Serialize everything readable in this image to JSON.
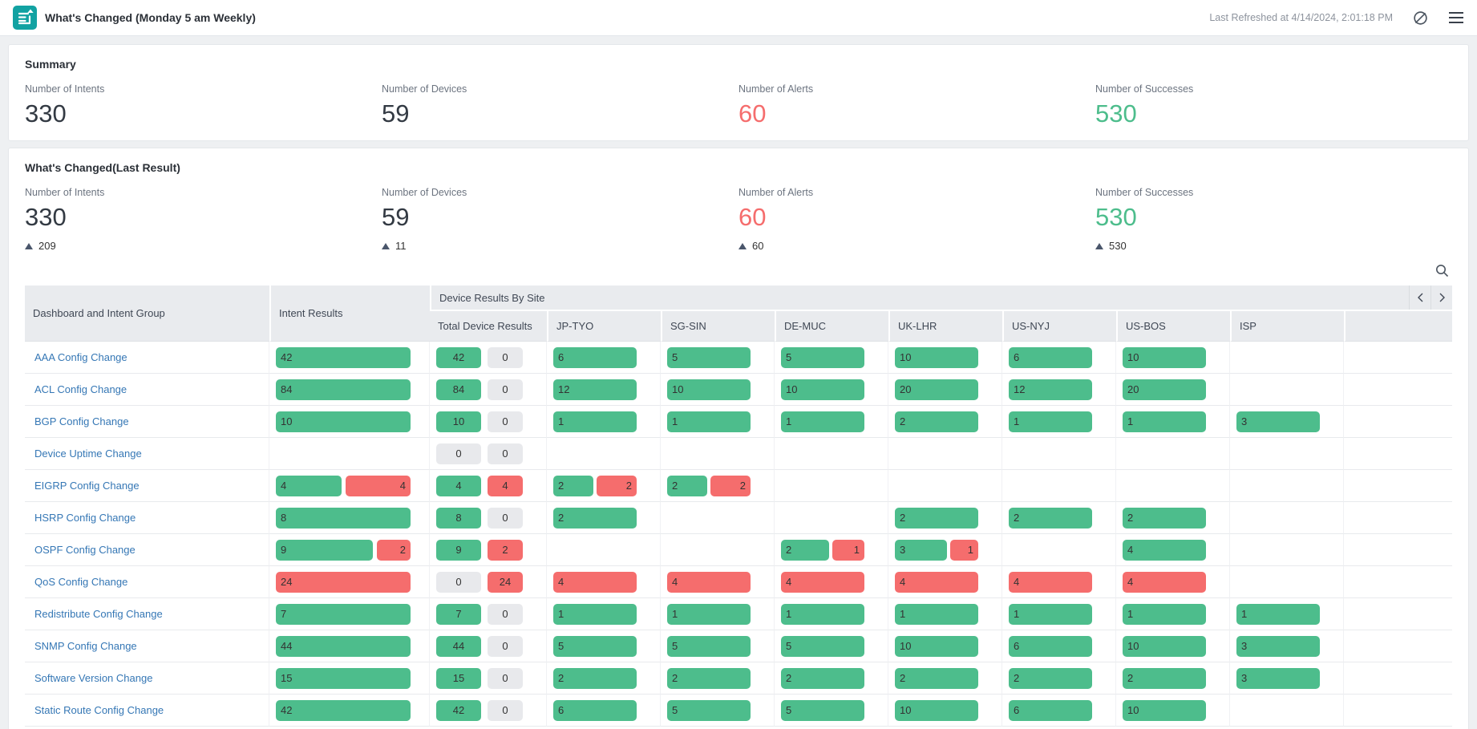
{
  "header": {
    "title": "What's Changed (Monday 5 am Weekly)",
    "last_refreshed": "Last Refreshed at 4/14/2024, 2:01:18 PM",
    "icons": [
      "report-icon",
      "auto-refresh-off-icon",
      "menu-icon"
    ]
  },
  "colors": {
    "success": "#4dbd8c",
    "fail": "#f56d6d",
    "neutral": "#e8e9ec",
    "accent": "#12a2a2",
    "link": "#3577b5"
  },
  "summary": {
    "title": "Summary",
    "stats": [
      {
        "label": "Number of Intents",
        "value": "330",
        "color": "default"
      },
      {
        "label": "Number of Devices",
        "value": "59",
        "color": "default"
      },
      {
        "label": "Number of Alerts",
        "value": "60",
        "color": "alert"
      },
      {
        "label": "Number of Successes",
        "value": "530",
        "color": "success"
      }
    ]
  },
  "last_result": {
    "title": "What's Changed(Last Result)",
    "stats": [
      {
        "label": "Number of Intents",
        "value": "330",
        "color": "default",
        "delta": "209"
      },
      {
        "label": "Number of Devices",
        "value": "59",
        "color": "default",
        "delta": "11"
      },
      {
        "label": "Number of Alerts",
        "value": "60",
        "color": "alert",
        "delta": "60"
      },
      {
        "label": "Number of Successes",
        "value": "530",
        "color": "success",
        "delta": "530"
      }
    ],
    "tools": [
      "search-icon"
    ]
  },
  "table": {
    "col_dashboard": "Dashboard and Intent Group",
    "col_intent": "Intent Results",
    "group_header": "Device Results By Site",
    "pager_icons": [
      "chevron-left-icon",
      "chevron-right-icon"
    ],
    "site_columns": [
      "Total Device Results",
      "JP-TYO",
      "SG-SIN",
      "DE-MUC",
      "UK-LHR",
      "US-NYJ",
      "US-BOS",
      "ISP"
    ],
    "rows": [
      {
        "name": "AAA Config Change",
        "intent": {
          "s": 42,
          "f": null
        },
        "total": {
          "s": 42,
          "f": 0
        },
        "sites": [
          {
            "s": 6,
            "f": null
          },
          {
            "s": 5,
            "f": null
          },
          {
            "s": 5,
            "f": null
          },
          {
            "s": 10,
            "f": null
          },
          {
            "s": 6,
            "f": null
          },
          {
            "s": 10,
            "f": null
          },
          null
        ]
      },
      {
        "name": "ACL Config Change",
        "intent": {
          "s": 84,
          "f": null
        },
        "total": {
          "s": 84,
          "f": 0
        },
        "sites": [
          {
            "s": 12,
            "f": null
          },
          {
            "s": 10,
            "f": null
          },
          {
            "s": 10,
            "f": null
          },
          {
            "s": 20,
            "f": null
          },
          {
            "s": 12,
            "f": null
          },
          {
            "s": 20,
            "f": null
          },
          null
        ]
      },
      {
        "name": "BGP Config Change",
        "intent": {
          "s": 10,
          "f": null
        },
        "total": {
          "s": 10,
          "f": 0
        },
        "sites": [
          {
            "s": 1,
            "f": null
          },
          {
            "s": 1,
            "f": null
          },
          {
            "s": 1,
            "f": null
          },
          {
            "s": 2,
            "f": null
          },
          {
            "s": 1,
            "f": null
          },
          {
            "s": 1,
            "f": null
          },
          {
            "s": 3,
            "f": null
          }
        ]
      },
      {
        "name": "Device Uptime Change",
        "intent": null,
        "total": {
          "s": 0,
          "f": 0
        },
        "sites": [
          null,
          null,
          null,
          null,
          null,
          null,
          null
        ]
      },
      {
        "name": "EIGRP Config Change",
        "intent": {
          "s": 4,
          "f": 4
        },
        "total": {
          "s": 4,
          "f": 4
        },
        "sites": [
          {
            "s": 2,
            "f": 2
          },
          {
            "s": 2,
            "f": 2
          },
          null,
          null,
          null,
          null,
          null
        ]
      },
      {
        "name": "HSRP Config Change",
        "intent": {
          "s": 8,
          "f": null
        },
        "total": {
          "s": 8,
          "f": 0
        },
        "sites": [
          {
            "s": 2,
            "f": null
          },
          null,
          null,
          {
            "s": 2,
            "f": null
          },
          {
            "s": 2,
            "f": null
          },
          {
            "s": 2,
            "f": null
          },
          null
        ]
      },
      {
        "name": "OSPF Config Change",
        "intent": {
          "s": 9,
          "f": 2
        },
        "total": {
          "s": 9,
          "f": 2
        },
        "sites": [
          null,
          null,
          {
            "s": 2,
            "f": 1
          },
          {
            "s": 3,
            "f": 1
          },
          null,
          {
            "s": 4,
            "f": null
          },
          null
        ]
      },
      {
        "name": "QoS Config Change",
        "intent": {
          "s": null,
          "f": 24
        },
        "total": {
          "s": 0,
          "f": 24
        },
        "sites": [
          {
            "s": null,
            "f": 4
          },
          {
            "s": null,
            "f": 4
          },
          {
            "s": null,
            "f": 4
          },
          {
            "s": null,
            "f": 4
          },
          {
            "s": null,
            "f": 4
          },
          {
            "s": null,
            "f": 4
          },
          null
        ]
      },
      {
        "name": "Redistribute Config Change",
        "intent": {
          "s": 7,
          "f": null
        },
        "total": {
          "s": 7,
          "f": 0
        },
        "sites": [
          {
            "s": 1,
            "f": null
          },
          {
            "s": 1,
            "f": null
          },
          {
            "s": 1,
            "f": null
          },
          {
            "s": 1,
            "f": null
          },
          {
            "s": 1,
            "f": null
          },
          {
            "s": 1,
            "f": null
          },
          {
            "s": 1,
            "f": null
          }
        ]
      },
      {
        "name": "SNMP Config Change",
        "intent": {
          "s": 44,
          "f": null
        },
        "total": {
          "s": 44,
          "f": 0
        },
        "sites": [
          {
            "s": 5,
            "f": null
          },
          {
            "s": 5,
            "f": null
          },
          {
            "s": 5,
            "f": null
          },
          {
            "s": 10,
            "f": null
          },
          {
            "s": 6,
            "f": null
          },
          {
            "s": 10,
            "f": null
          },
          {
            "s": 3,
            "f": null
          }
        ]
      },
      {
        "name": "Software Version Change",
        "intent": {
          "s": 15,
          "f": null
        },
        "total": {
          "s": 15,
          "f": 0
        },
        "sites": [
          {
            "s": 2,
            "f": null
          },
          {
            "s": 2,
            "f": null
          },
          {
            "s": 2,
            "f": null
          },
          {
            "s": 2,
            "f": null
          },
          {
            "s": 2,
            "f": null
          },
          {
            "s": 2,
            "f": null
          },
          {
            "s": 3,
            "f": null
          }
        ]
      },
      {
        "name": "Static Route Config Change",
        "intent": {
          "s": 42,
          "f": null
        },
        "total": {
          "s": 42,
          "f": 0
        },
        "sites": [
          {
            "s": 6,
            "f": null
          },
          {
            "s": 5,
            "f": null
          },
          {
            "s": 5,
            "f": null
          },
          {
            "s": 10,
            "f": null
          },
          {
            "s": 6,
            "f": null
          },
          {
            "s": 10,
            "f": null
          },
          null
        ]
      }
    ]
  }
}
